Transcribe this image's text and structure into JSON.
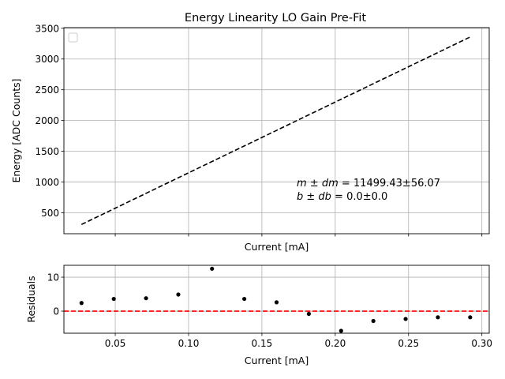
{
  "chart_data": [
    {
      "type": "line",
      "title": "Energy Linearity LO Gain Pre-Fit",
      "xlabel": "Current [mA]",
      "ylabel": "Energy [ADC Counts]",
      "xlim": [
        0.015,
        0.305
      ],
      "ylim": [
        160,
        3510
      ],
      "x_ticks": [
        0.05,
        0.1,
        0.15,
        0.2,
        0.25,
        0.3
      ],
      "x_tick_labels_shown": false,
      "y_ticks": [
        500,
        1000,
        1500,
        2000,
        2500,
        3000,
        3500
      ],
      "grid": true,
      "legend": "top-left (empty)",
      "series": [
        {
          "style": "dashed",
          "color": "#000000",
          "x": [
            0.027,
            0.292
          ],
          "y": [
            310.5,
            3357.8
          ]
        }
      ],
      "annotation": {
        "line1_lhs": "m ± dm",
        "line1_rhs": " = 11499.43±56.07",
        "line2_lhs": "b ± db",
        "line2_rhs": " = 0.0±0.0"
      }
    },
    {
      "type": "scatter",
      "xlabel": "Current [mA]",
      "ylabel": "Residuals",
      "xlim": [
        0.015,
        0.305
      ],
      "ylim": [
        -6.5,
        13.5
      ],
      "x_ticks": [
        0.05,
        0.1,
        0.15,
        0.2,
        0.25,
        0.3
      ],
      "x_tick_labels": [
        "0.05",
        "0.10",
        "0.15",
        "0.20",
        "0.25",
        "0.30"
      ],
      "y_ticks": [
        0,
        10
      ],
      "y_tick_labels": [
        "0",
        "10"
      ],
      "grid": true,
      "zero_line": {
        "value": 0,
        "color": "#ff0000",
        "style": "dashed"
      },
      "series": [
        {
          "color": "#000000",
          "x": [
            0.027,
            0.049,
            0.071,
            0.093,
            0.116,
            0.138,
            0.16,
            0.182,
            0.204,
            0.226,
            0.248,
            0.27,
            0.292
          ],
          "y": [
            2.4,
            3.6,
            3.8,
            4.9,
            12.5,
            3.6,
            2.6,
            -0.8,
            -5.8,
            -2.9,
            -2.3,
            -1.8,
            -1.8
          ]
        }
      ]
    }
  ]
}
